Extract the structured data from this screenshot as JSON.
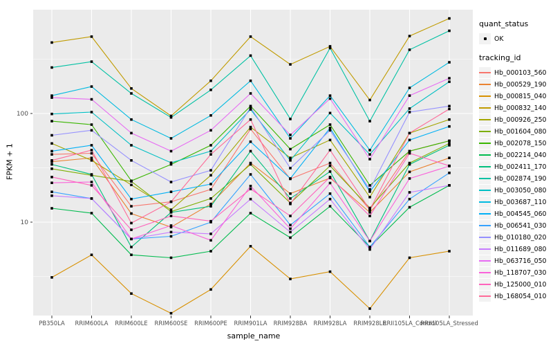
{
  "chart_data": {
    "type": "line",
    "title": "",
    "xlabel": "sample_name",
    "ylabel": "FPKM + 1",
    "y_scale": "log10",
    "ylim": [
      1.3,
      900
    ],
    "grid": true,
    "legend_position": "right",
    "panel_bg": "#EBEBEB",
    "gridline_color": "#FFFFFF",
    "point_color": "#000000",
    "tick_label_color": "#4D4D4D",
    "y_ticks": [
      {
        "label": "10",
        "value": 10
      },
      {
        "label": "100",
        "value": 100
      }
    ],
    "y_minor_gridlines": [
      3.162,
      31.623,
      316.228
    ],
    "categories": [
      "PB350LA",
      "RRIM600LA",
      "RRIM600LE",
      "RRIM600SE",
      "RRIM600PE",
      "RRIM901LA",
      "RRIM928BA",
      "RRIM928LA",
      "RRIM928LE",
      "RRII105LA_Control",
      "RRII105LA_Stressed"
    ],
    "legend": {
      "quant_status_title": "quant_status",
      "ok_label": "OK",
      "tracking_title": "tracking_id"
    },
    "series": [
      {
        "name": "Hb_000103_560",
        "color": "#F8766D",
        "values": [
          42,
          43,
          14,
          15.4,
          20,
          72,
          25,
          35,
          13,
          45,
          56
        ]
      },
      {
        "name": "Hb_000529_190",
        "color": "#EA8331",
        "values": [
          36,
          39,
          12,
          9,
          14.7,
          35,
          18.3,
          25.5,
          12.3,
          29,
          39
        ]
      },
      {
        "name": "Hb_000815_040",
        "color": "#D89000",
        "values": [
          3.1,
          5,
          2.2,
          1.45,
          2.4,
          6,
          3,
          3.5,
          1.6,
          4.7,
          5.4
        ]
      },
      {
        "name": "Hb_000832_140",
        "color": "#C09B00",
        "values": [
          450,
          510,
          170,
          95,
          200,
          510,
          283,
          415,
          133,
          516,
          750
        ]
      },
      {
        "name": "Hb_000926_250",
        "color": "#A3A500",
        "values": [
          53,
          37,
          22,
          13,
          27,
          75,
          39,
          57,
          17,
          66,
          88
        ]
      },
      {
        "name": "Hb_001604_080",
        "color": "#7CAE00",
        "values": [
          31,
          27,
          23.7,
          12.5,
          16.5,
          34,
          15,
          33,
          13.5,
          35,
          53
        ]
      },
      {
        "name": "Hb_002078_150",
        "color": "#39B600",
        "values": [
          85,
          79,
          24,
          34,
          51,
          117,
          47,
          79,
          21.8,
          45,
          56
        ]
      },
      {
        "name": "Hb_002214_040",
        "color": "#00BB4E",
        "values": [
          13.4,
          12.1,
          5,
          4.7,
          5.4,
          12.1,
          7.2,
          14,
          5.9,
          13.7,
          21.8
        ]
      },
      {
        "name": "Hb_002411_170",
        "color": "#00BF7D",
        "values": [
          34,
          27.5,
          5.9,
          12.3,
          14,
          45,
          16.5,
          29.2,
          6.7,
          34,
          51
        ]
      },
      {
        "name": "Hb_002874_190",
        "color": "#00C1A3",
        "values": [
          265,
          300,
          153,
          92,
          165,
          341,
          89,
          400,
          85,
          386,
          577
        ]
      },
      {
        "name": "Hb_003050_080",
        "color": "#00BFC4",
        "values": [
          99,
          103,
          51,
          35.2,
          45,
          109,
          37,
          101,
          42,
          111,
          196
        ]
      },
      {
        "name": "Hb_003687_110",
        "color": "#00BAE0",
        "values": [
          146,
          177,
          88,
          59,
          96,
          200,
          59,
          146,
          46,
          172,
          296
        ]
      },
      {
        "name": "Hb_004545_060",
        "color": "#00B0F6",
        "values": [
          45,
          51,
          16.3,
          19,
          22.4,
          55,
          25.2,
          73.6,
          19.1,
          57,
          76
        ]
      },
      {
        "name": "Hb_006541_030",
        "color": "#35A2FF",
        "values": [
          19,
          16.5,
          7,
          7.4,
          10,
          27.5,
          9.4,
          18.3,
          5.9,
          16.3,
          28.4
        ]
      },
      {
        "name": "Hb_010180_020",
        "color": "#9590FF",
        "values": [
          63,
          70,
          37,
          23.4,
          30,
          114,
          31.4,
          70,
          20,
          103,
          117
        ]
      },
      {
        "name": "Hb_011689_080",
        "color": "#C77CFF",
        "values": [
          17.5,
          16.5,
          7,
          8.1,
          7.8,
          16.3,
          8.1,
          16.3,
          5.6,
          18.8,
          21.8
        ]
      },
      {
        "name": "Hb_063716_050",
        "color": "#E76BF3",
        "values": [
          140,
          135,
          66,
          45,
          70,
          153,
          63.5,
          137,
          38,
          146,
          211
        ]
      },
      {
        "name": "Hb_118707_030",
        "color": "#FA62DB",
        "values": [
          23,
          23.4,
          7,
          9.3,
          6.8,
          21.5,
          8.7,
          22.9,
          6.7,
          25.2,
          32.8
        ]
      },
      {
        "name": "Hb_125000_010",
        "color": "#FF62BC",
        "values": [
          26,
          21.8,
          8.5,
          11.4,
          10.2,
          20.2,
          11.4,
          26,
          11.4,
          43,
          33
        ]
      },
      {
        "name": "Hb_168054_010",
        "color": "#FF6A98",
        "values": [
          37,
          46,
          9.8,
          15.4,
          42,
          88,
          14.7,
          46,
          13,
          66,
          110
        ]
      }
    ]
  }
}
